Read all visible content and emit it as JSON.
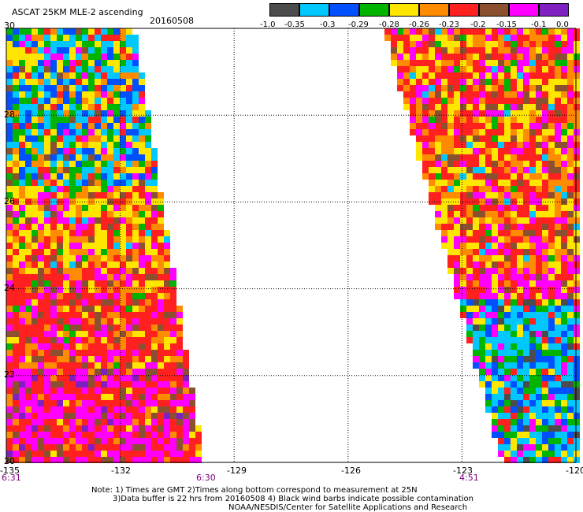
{
  "header": {
    "title": "ASCAT 25KM MLE-2 ascending",
    "date": "20160508"
  },
  "colorbar": {
    "colors": [
      "#4c4c4c",
      "#00c8ff",
      "#0050ff",
      "#00b400",
      "#ffe600",
      "#ff8c00",
      "#ff2020",
      "#8b5030",
      "#ff00ff",
      "#8020c0"
    ],
    "labels": [
      "-1.0",
      "-0.35",
      "-0.3",
      "-0.29",
      "-0.28",
      "-0.26",
      "-0.23",
      "-0.2",
      "-0.15",
      "-0.1",
      "0.0"
    ]
  },
  "axes": {
    "lat_labels": [
      "20",
      "22",
      "24",
      "26",
      "28",
      "30"
    ],
    "lon_labels": [
      "-135",
      "-132",
      "-129",
      "-126",
      "-123",
      "-120"
    ]
  },
  "swaths": {
    "left_swath": {
      "time_start": "6:31",
      "time_end": "6:30"
    },
    "right_swath": {
      "time": "4:51"
    }
  },
  "notes": {
    "line1": "Note: 1) Times are GMT 2)Times along bottom correspond to measurement at 25N",
    "line2": "3)Data buffer is 22 hrs from 20160508 4) Black wind barbs indicate possible contamination",
    "line3": "NOAA/NESDIS/Center for Satellite Applications and Research"
  }
}
